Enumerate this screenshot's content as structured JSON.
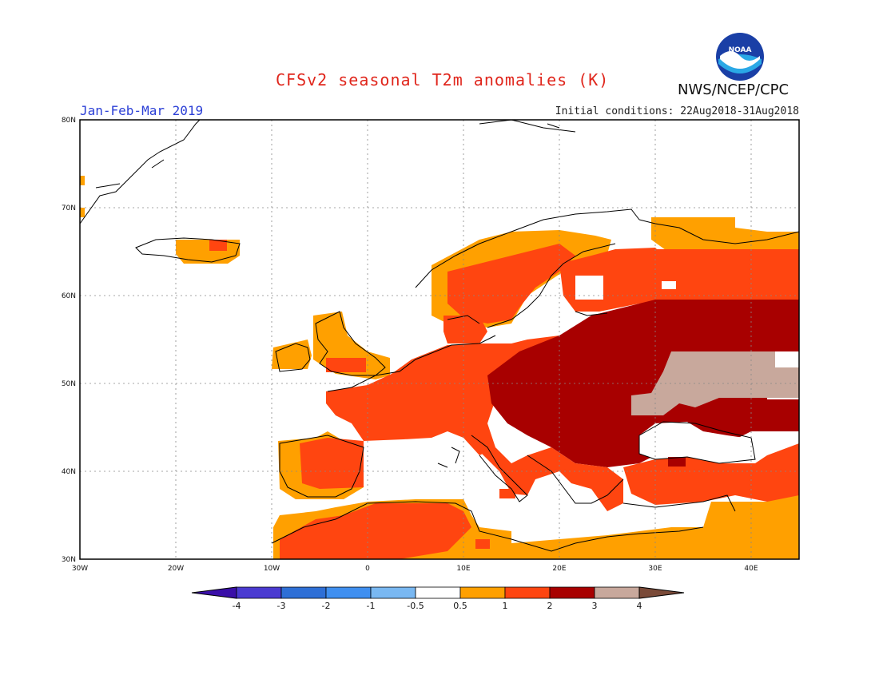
{
  "header": {
    "title": "CFSv2 seasonal T2m anomalies (K)",
    "period": "Jan-Feb-Mar 2019",
    "initial_conditions": "Initial conditions: 22Aug2018-31Aug2018",
    "organization": "NWS/NCEP/CPC",
    "logo_text": "NOAA"
  },
  "map": {
    "lon_labels": [
      "30W",
      "20W",
      "10W",
      "0",
      "10E",
      "20E",
      "30E",
      "40E"
    ],
    "lat_labels": [
      "30N",
      "40N",
      "50N",
      "60N",
      "70N",
      "80N"
    ],
    "lon_range": [
      -30,
      45
    ],
    "lat_range": [
      30,
      80
    ]
  },
  "colorbar": {
    "labels": [
      "-4",
      "-3",
      "-2",
      "-1",
      "-0.5",
      "0.5",
      "1",
      "2",
      "3",
      "4"
    ],
    "colors": [
      "#3a0fa8",
      "#4a3ad1",
      "#2e6fd6",
      "#3f8ff0",
      "#79b8f2",
      "#ffffff",
      "#ffa000",
      "#ff4510",
      "#a80000",
      "#c8a89c",
      "#7a4a38"
    ]
  },
  "anomaly_colors": {
    "c05_1": "#ffa000",
    "c1_2": "#ff4510",
    "c2_3": "#a80000",
    "c3_4": "#c8a89c"
  }
}
